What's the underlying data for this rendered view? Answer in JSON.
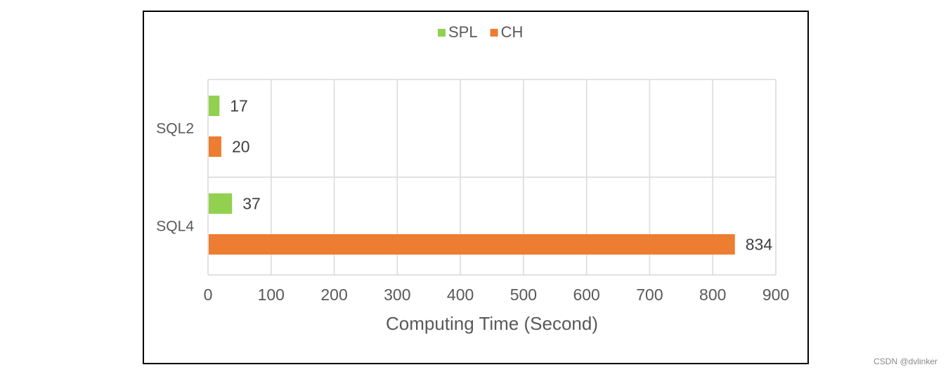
{
  "chart_data": {
    "type": "bar",
    "orientation": "horizontal",
    "categories": [
      "SQL2",
      "SQL4"
    ],
    "series": [
      {
        "name": "SPL",
        "color": "#92D050",
        "values": [
          17,
          37
        ]
      },
      {
        "name": "CH",
        "color": "#ED7D31",
        "values": [
          20,
          834
        ]
      }
    ],
    "xlabel": "Computing Time (Second)",
    "ylabel": "",
    "xlim": [
      0,
      900
    ],
    "xticks": [
      "0",
      "100",
      "200",
      "300",
      "400",
      "500",
      "600",
      "700",
      "800",
      "900"
    ],
    "xtick_values": [
      0,
      100,
      200,
      300,
      400,
      500,
      600,
      700,
      800,
      900
    ],
    "grid": true,
    "legend_position": "top-center",
    "data_labels": true
  },
  "watermark": "CSDN @dvlinker"
}
